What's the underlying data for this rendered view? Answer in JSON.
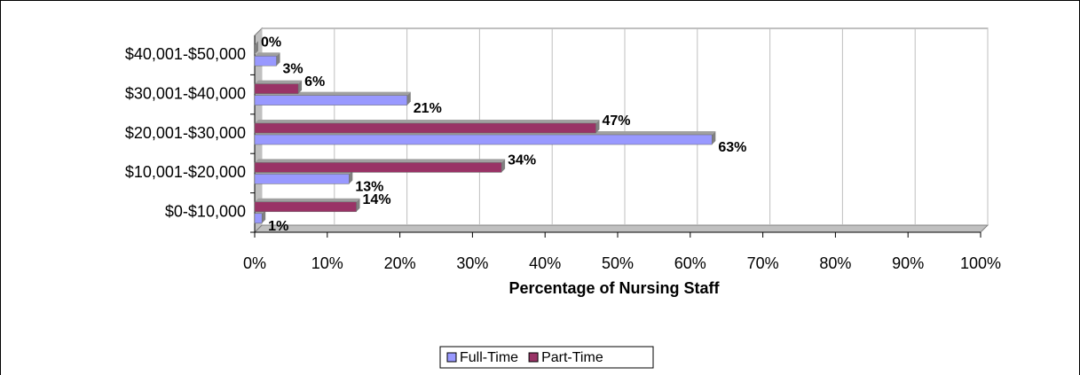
{
  "chart_data": {
    "type": "bar",
    "orientation": "horizontal",
    "x_label": "Percentage of Nursing Staff",
    "categories": [
      "$0-$10,000",
      "$10,001-$20,000",
      "$20,001-$30,000",
      "$30,001-$40,000",
      "$40,001-$50,000"
    ],
    "series": [
      {
        "name": "Full-Time",
        "color": "#9999ff",
        "values": [
          1,
          13,
          63,
          21,
          3
        ],
        "value_labels": [
          "1%",
          "13%",
          "63%",
          "21%",
          "3%"
        ]
      },
      {
        "name": "Part-Time",
        "color": "#993366",
        "values": [
          14,
          34,
          47,
          6,
          0
        ],
        "value_labels": [
          "14%",
          "34%",
          "47%",
          "6%",
          "0%"
        ]
      }
    ],
    "xlim": [
      0,
      100
    ],
    "xticks": [
      {
        "value": 0,
        "label": "0%"
      },
      {
        "value": 10,
        "label": "10%"
      },
      {
        "value": 20,
        "label": "20%"
      },
      {
        "value": 30,
        "label": "30%"
      },
      {
        "value": 40,
        "label": "40%"
      },
      {
        "value": 50,
        "label": "50%"
      },
      {
        "value": 60,
        "label": "60%"
      },
      {
        "value": 70,
        "label": "70%"
      },
      {
        "value": 80,
        "label": "80%"
      },
      {
        "value": 90,
        "label": "90%"
      },
      {
        "value": 100,
        "label": "100%"
      }
    ],
    "grid": true,
    "legend": "bottom"
  }
}
